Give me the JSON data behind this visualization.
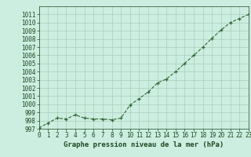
{
  "x": [
    0,
    1,
    2,
    3,
    4,
    5,
    6,
    7,
    8,
    9,
    10,
    11,
    12,
    13,
    14,
    15,
    16,
    17,
    18,
    19,
    20,
    21,
    22,
    23
  ],
  "y": [
    997.1,
    997.7,
    998.3,
    998.2,
    998.7,
    998.3,
    998.2,
    998.2,
    998.1,
    998.3,
    999.9,
    1000.7,
    1001.5,
    1002.6,
    1003.1,
    1004.0,
    1005.0,
    1006.0,
    1007.0,
    1008.1,
    1009.1,
    1010.0,
    1010.5,
    1011.0
  ],
  "xlabel": "Graphe pression niveau de la mer (hPa)",
  "ylim": [
    997,
    1012
  ],
  "xlim": [
    0,
    23
  ],
  "yticks": [
    997,
    998,
    999,
    1000,
    1001,
    1002,
    1003,
    1004,
    1005,
    1006,
    1007,
    1008,
    1009,
    1010,
    1011
  ],
  "xticks": [
    0,
    1,
    2,
    3,
    4,
    5,
    6,
    7,
    8,
    9,
    10,
    11,
    12,
    13,
    14,
    15,
    16,
    17,
    18,
    19,
    20,
    21,
    22,
    23
  ],
  "line_color": "#2d6a2d",
  "marker_color": "#2d6a2d",
  "bg_color": "#cceee0",
  "grid_color": "#aaccbb",
  "text_color": "#1a4a1a",
  "label_fontsize": 6.5,
  "tick_fontsize": 5.5
}
